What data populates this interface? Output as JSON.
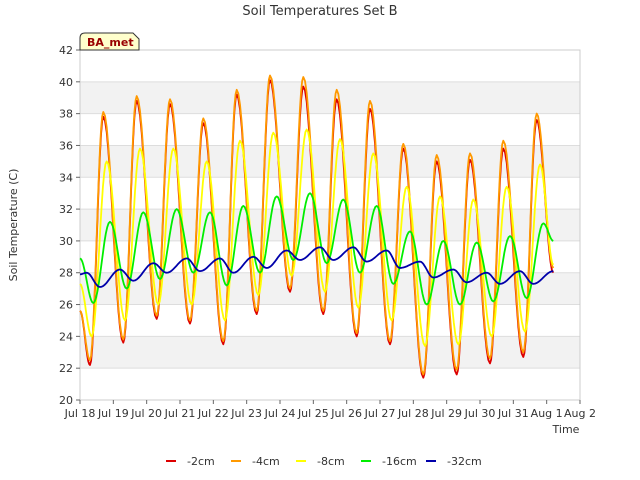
{
  "chart_data": {
    "type": "line",
    "title": "Soil Temperatures Set B",
    "xlabel": "Time",
    "ylabel": "Soil Temperature (C)",
    "ylim": [
      20,
      42
    ],
    "yticks": [
      20,
      22,
      24,
      26,
      28,
      30,
      32,
      34,
      36,
      38,
      40,
      42
    ],
    "xlim": [
      0,
      15
    ],
    "xticks": [
      {
        "day": 0,
        "label": "Jul 18"
      },
      {
        "day": 1,
        "label": "Jul 19"
      },
      {
        "day": 2,
        "label": "Jul 20"
      },
      {
        "day": 3,
        "label": "Jul 21"
      },
      {
        "day": 4,
        "label": "Jul 22"
      },
      {
        "day": 5,
        "label": "Jul 23"
      },
      {
        "day": 6,
        "label": "Jul 24"
      },
      {
        "day": 7,
        "label": "Jul 25"
      },
      {
        "day": 8,
        "label": "Jul 26"
      },
      {
        "day": 9,
        "label": "Jul 27"
      },
      {
        "day": 10,
        "label": "Jul 28"
      },
      {
        "day": 11,
        "label": "Jul 29"
      },
      {
        "day": 12,
        "label": "Jul 30"
      },
      {
        "day": 13,
        "label": "Jul 31"
      },
      {
        "day": 14,
        "label": "Aug 1"
      },
      {
        "day": 15,
        "label": "Aug 2"
      }
    ],
    "grid": true,
    "legend_position": "bottom",
    "badge": "BA_met",
    "series": [
      {
        "name": "-2cm",
        "color": "#dd0000",
        "points": [
          [
            0.0,
            25.6
          ],
          [
            0.3,
            22.2
          ],
          [
            0.7,
            37.8
          ],
          [
            1.3,
            23.6
          ],
          [
            1.7,
            38.8
          ],
          [
            2.3,
            25.1
          ],
          [
            2.7,
            38.6
          ],
          [
            3.3,
            24.8
          ],
          [
            3.7,
            37.4
          ],
          [
            4.3,
            23.5
          ],
          [
            4.7,
            39.2
          ],
          [
            5.3,
            25.4
          ],
          [
            5.7,
            40.1
          ],
          [
            6.3,
            26.8
          ],
          [
            6.7,
            39.7
          ],
          [
            7.3,
            25.4
          ],
          [
            7.7,
            38.9
          ],
          [
            8.3,
            24.0
          ],
          [
            8.7,
            38.3
          ],
          [
            9.3,
            23.5
          ],
          [
            9.7,
            35.8
          ],
          [
            10.3,
            21.4
          ],
          [
            10.7,
            35.0
          ],
          [
            11.3,
            21.6
          ],
          [
            11.7,
            35.1
          ],
          [
            12.3,
            22.3
          ],
          [
            12.7,
            35.8
          ],
          [
            13.3,
            22.7
          ],
          [
            13.7,
            37.6
          ],
          [
            14.2,
            28.0
          ]
        ]
      },
      {
        "name": "-4cm",
        "color": "#ff9900",
        "points": [
          [
            0.0,
            25.6
          ],
          [
            0.3,
            22.5
          ],
          [
            0.7,
            38.1
          ],
          [
            1.3,
            23.8
          ],
          [
            1.7,
            39.1
          ],
          [
            2.3,
            25.3
          ],
          [
            2.7,
            38.9
          ],
          [
            3.3,
            25.0
          ],
          [
            3.7,
            37.7
          ],
          [
            4.3,
            23.7
          ],
          [
            4.7,
            39.5
          ],
          [
            5.3,
            25.6
          ],
          [
            5.7,
            40.4
          ],
          [
            6.3,
            27.0
          ],
          [
            6.7,
            40.3
          ],
          [
            7.3,
            25.6
          ],
          [
            7.7,
            39.5
          ],
          [
            8.3,
            24.2
          ],
          [
            8.7,
            38.8
          ],
          [
            9.3,
            23.7
          ],
          [
            9.7,
            36.1
          ],
          [
            10.3,
            21.6
          ],
          [
            10.7,
            35.4
          ],
          [
            11.3,
            21.9
          ],
          [
            11.7,
            35.5
          ],
          [
            12.3,
            22.6
          ],
          [
            12.7,
            36.3
          ],
          [
            13.3,
            23.0
          ],
          [
            13.7,
            38.0
          ],
          [
            14.2,
            28.3
          ]
        ]
      },
      {
        "name": "-8cm",
        "color": "#ffff00",
        "points": [
          [
            0.0,
            27.3
          ],
          [
            0.35,
            24.0
          ],
          [
            0.8,
            35.0
          ],
          [
            1.35,
            25.0
          ],
          [
            1.8,
            35.8
          ],
          [
            2.35,
            26.0
          ],
          [
            2.8,
            35.8
          ],
          [
            3.35,
            26.0
          ],
          [
            3.8,
            35.0
          ],
          [
            4.35,
            25.0
          ],
          [
            4.8,
            36.3
          ],
          [
            5.35,
            26.6
          ],
          [
            5.8,
            36.8
          ],
          [
            6.35,
            27.8
          ],
          [
            6.8,
            37.0
          ],
          [
            7.35,
            26.8
          ],
          [
            7.8,
            36.4
          ],
          [
            8.35,
            25.8
          ],
          [
            8.8,
            35.5
          ],
          [
            9.35,
            25.0
          ],
          [
            9.8,
            33.4
          ],
          [
            10.35,
            23.4
          ],
          [
            10.8,
            32.8
          ],
          [
            11.35,
            23.5
          ],
          [
            11.8,
            32.6
          ],
          [
            12.35,
            24.0
          ],
          [
            12.8,
            33.4
          ],
          [
            13.35,
            24.3
          ],
          [
            13.8,
            34.8
          ],
          [
            14.2,
            28.5
          ]
        ]
      },
      {
        "name": "-16cm",
        "color": "#00ee00",
        "points": [
          [
            0.0,
            28.9
          ],
          [
            0.4,
            26.1
          ],
          [
            0.9,
            31.2
          ],
          [
            1.4,
            27.0
          ],
          [
            1.9,
            31.8
          ],
          [
            2.4,
            27.6
          ],
          [
            2.9,
            32.0
          ],
          [
            3.4,
            28.0
          ],
          [
            3.9,
            31.8
          ],
          [
            4.4,
            27.2
          ],
          [
            4.9,
            32.2
          ],
          [
            5.4,
            28.0
          ],
          [
            5.9,
            32.8
          ],
          [
            6.4,
            28.8
          ],
          [
            6.9,
            33.0
          ],
          [
            7.4,
            28.6
          ],
          [
            7.9,
            32.6
          ],
          [
            8.4,
            28.0
          ],
          [
            8.9,
            32.2
          ],
          [
            9.4,
            27.3
          ],
          [
            9.9,
            30.6
          ],
          [
            10.4,
            26.0
          ],
          [
            10.9,
            30.0
          ],
          [
            11.4,
            26.0
          ],
          [
            11.9,
            29.9
          ],
          [
            12.4,
            26.2
          ],
          [
            12.9,
            30.3
          ],
          [
            13.4,
            26.4
          ],
          [
            13.9,
            31.1
          ],
          [
            14.2,
            30.0
          ]
        ]
      },
      {
        "name": "-32cm",
        "color": "#0000aa",
        "points": [
          [
            0.0,
            27.9
          ],
          [
            0.2,
            28.0
          ],
          [
            0.6,
            27.1
          ],
          [
            1.2,
            28.2
          ],
          [
            1.6,
            27.5
          ],
          [
            2.2,
            28.6
          ],
          [
            2.6,
            28.0
          ],
          [
            3.2,
            28.9
          ],
          [
            3.6,
            28.1
          ],
          [
            4.2,
            28.9
          ],
          [
            4.6,
            28.0
          ],
          [
            5.2,
            29.0
          ],
          [
            5.6,
            28.3
          ],
          [
            6.2,
            29.4
          ],
          [
            6.6,
            28.8
          ],
          [
            7.2,
            29.6
          ],
          [
            7.6,
            28.8
          ],
          [
            8.2,
            29.6
          ],
          [
            8.6,
            28.7
          ],
          [
            9.2,
            29.4
          ],
          [
            9.6,
            28.3
          ],
          [
            10.2,
            28.7
          ],
          [
            10.6,
            27.7
          ],
          [
            11.2,
            28.2
          ],
          [
            11.6,
            27.4
          ],
          [
            12.2,
            28.0
          ],
          [
            12.6,
            27.3
          ],
          [
            13.2,
            28.1
          ],
          [
            13.6,
            27.3
          ],
          [
            14.2,
            28.1
          ]
        ]
      }
    ]
  }
}
